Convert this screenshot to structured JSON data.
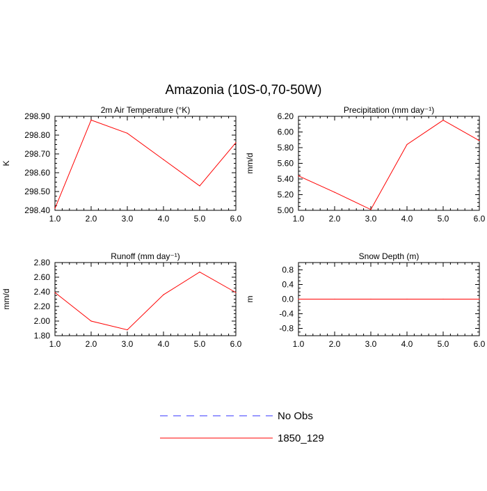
{
  "page_title": "Amazonia (10S-0,70-50W)",
  "legend": [
    {
      "label": "No Obs",
      "color": "#3333ff",
      "style": "dashed"
    },
    {
      "label": "1850_129",
      "color": "#ff0000",
      "style": "solid"
    }
  ],
  "chart_data": [
    {
      "type": "line",
      "title": "2m Air Temperature",
      "title_unit": "(°K)",
      "xlabel": "",
      "ylabel": "K",
      "x": [
        1,
        2,
        3,
        4,
        5,
        6
      ],
      "xlim": [
        1,
        6
      ],
      "xticks": [
        "1.0",
        "2.0",
        "3.0",
        "4.0",
        "5.0",
        "6.0"
      ],
      "ylim": [
        298.4,
        298.9
      ],
      "yticks": [
        {
          "value": 298.4,
          "label": "298.40"
        },
        {
          "value": 298.5,
          "label": "298.50"
        },
        {
          "value": 298.6,
          "label": "298.60"
        },
        {
          "value": 298.7,
          "label": "298.70"
        },
        {
          "value": 298.8,
          "label": "298.80"
        },
        {
          "value": 298.9,
          "label": "298.90"
        }
      ],
      "series": [
        {
          "name": "1850_129",
          "color": "#ff0000",
          "values": [
            298.41,
            298.88,
            298.81,
            298.67,
            298.53,
            298.76
          ]
        }
      ]
    },
    {
      "type": "line",
      "title": "Precipitation",
      "title_unit": "(mm day⁻¹)",
      "xlabel": "",
      "ylabel": "mm/d",
      "x": [
        1,
        2,
        3,
        4,
        5,
        6
      ],
      "xlim": [
        1,
        6
      ],
      "xticks": [
        "1.0",
        "2.0",
        "3.0",
        "4.0",
        "5.0",
        "6.0"
      ],
      "ylim": [
        5.0,
        6.2
      ],
      "yticks": [
        {
          "value": 5.0,
          "label": "5.00"
        },
        {
          "value": 5.2,
          "label": "5.20"
        },
        {
          "value": 5.4,
          "label": "5.40"
        },
        {
          "value": 5.6,
          "label": "5.60"
        },
        {
          "value": 5.8,
          "label": "5.80"
        },
        {
          "value": 6.0,
          "label": "6.00"
        },
        {
          "value": 6.2,
          "label": "6.20"
        }
      ],
      "series": [
        {
          "name": "1850_129",
          "color": "#ff0000",
          "values": [
            5.44,
            5.23,
            5.01,
            5.84,
            6.15,
            5.89
          ]
        }
      ]
    },
    {
      "type": "line",
      "title": "Runoff",
      "title_unit": "(mm day⁻¹)",
      "xlabel": "",
      "ylabel": "mm/d",
      "x": [
        1,
        2,
        3,
        4,
        5,
        6
      ],
      "xlim": [
        1,
        6
      ],
      "xticks": [
        "1.0",
        "2.0",
        "3.0",
        "4.0",
        "5.0",
        "6.0"
      ],
      "ylim": [
        1.8,
        2.8
      ],
      "yticks": [
        {
          "value": 1.8,
          "label": "1.80"
        },
        {
          "value": 2.0,
          "label": "2.00"
        },
        {
          "value": 2.2,
          "label": "2.20"
        },
        {
          "value": 2.4,
          "label": "2.40"
        },
        {
          "value": 2.6,
          "label": "2.60"
        },
        {
          "value": 2.8,
          "label": "2.80"
        }
      ],
      "series": [
        {
          "name": "1850_129",
          "color": "#ff0000",
          "values": [
            2.39,
            2.0,
            1.88,
            2.36,
            2.67,
            2.39
          ]
        }
      ]
    },
    {
      "type": "line",
      "title": "Snow Depth",
      "title_unit": "(m)",
      "xlabel": "",
      "ylabel": "m",
      "x": [
        1,
        2,
        3,
        4,
        5,
        6
      ],
      "xlim": [
        1,
        6
      ],
      "xticks": [
        "1.0",
        "2.0",
        "3.0",
        "4.0",
        "5.0",
        "6.0"
      ],
      "ylim": [
        -1.0,
        1.0
      ],
      "yticks": [
        {
          "value": -0.8,
          "label": "-0.8"
        },
        {
          "value": -0.4,
          "label": "-0.4"
        },
        {
          "value": 0.0,
          "label": "0.0"
        },
        {
          "value": 0.4,
          "label": "0.4"
        },
        {
          "value": 0.8,
          "label": "0.8"
        }
      ],
      "series": [
        {
          "name": "1850_129",
          "color": "#ff0000",
          "values": [
            0,
            0,
            0,
            0,
            0,
            0
          ]
        }
      ]
    }
  ]
}
